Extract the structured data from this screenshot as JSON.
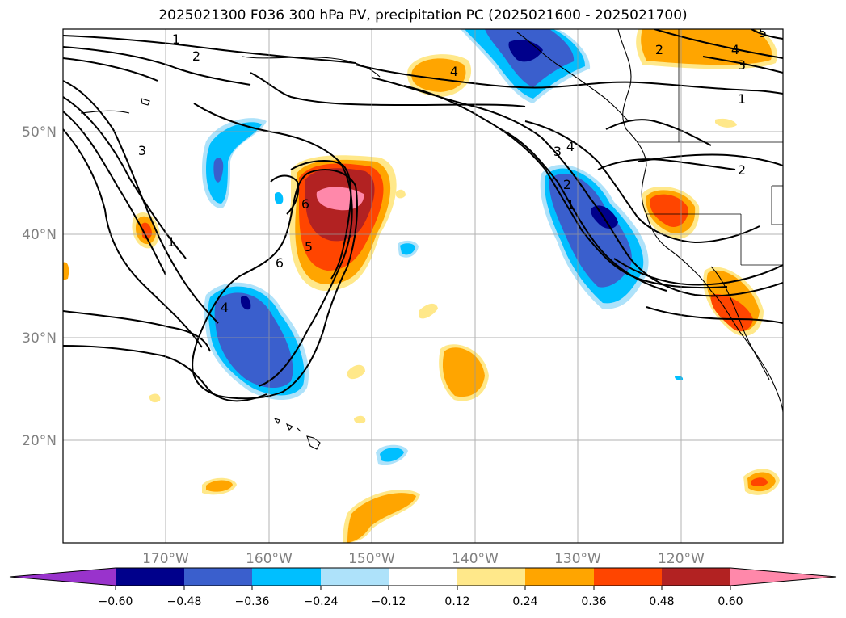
{
  "title": "2025021300 F036 300 hPa PV, precipitation PC (2025021600 - 2025021700)",
  "lat_labels": [
    "50°N",
    "40°N",
    "30°N",
    "20°N"
  ],
  "lon_labels": [
    "170°W",
    "160°W",
    "150°W",
    "140°W",
    "130°W",
    "120°W"
  ],
  "colorbar": {
    "ticks": [
      "−0.60",
      "−0.48",
      "−0.36",
      "−0.24",
      "−0.12",
      "0.12",
      "0.24",
      "0.36",
      "0.48",
      "0.60"
    ],
    "colors": [
      "#9933cc",
      "#00008b",
      "#3a5fcd",
      "#00bfff",
      "#aee2fa",
      "#ffffff",
      "#ffe88a",
      "#ffa500",
      "#ff4500",
      "#b22222",
      "#ff88aa"
    ]
  },
  "contour_labels": {
    "c1": "1",
    "c2": "2",
    "c3": "3",
    "c4": "4",
    "c5": "5",
    "c6": "6",
    "c7": "6",
    "c8": "4",
    "c9": "3",
    "c10": "4",
    "c11": "2",
    "c12": "1",
    "c13": "2",
    "c14": "4",
    "c15": "3",
    "c16": "1",
    "c17": "2",
    "c18": "1",
    "c19": "4",
    "c20": "5"
  }
}
